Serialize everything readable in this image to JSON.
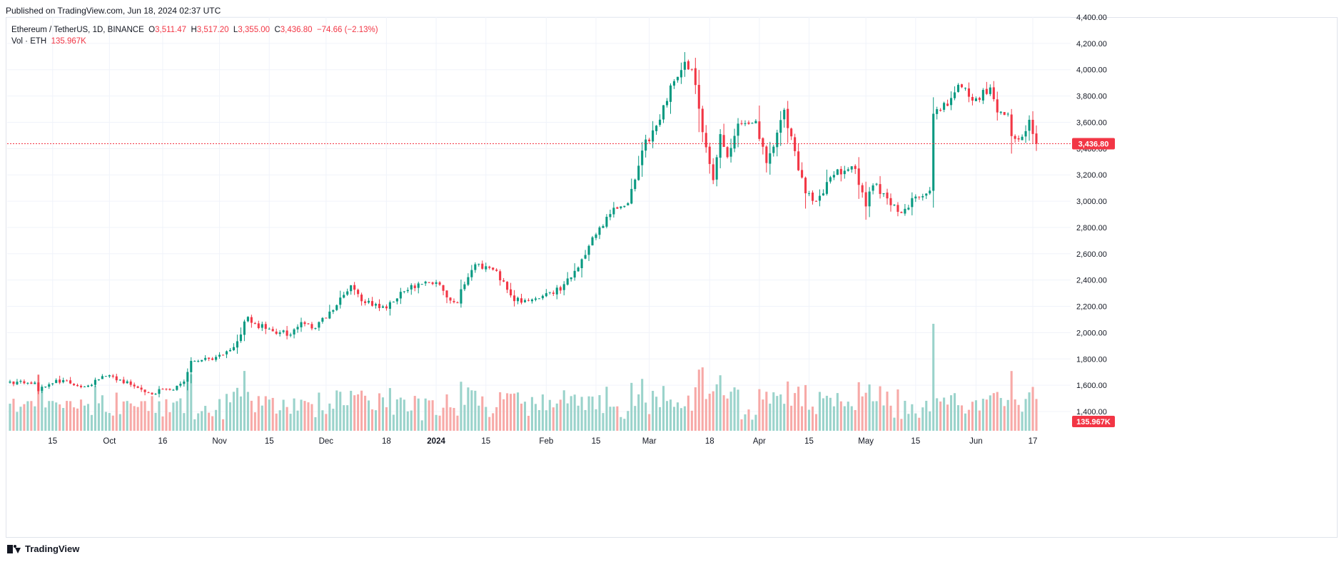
{
  "header": {
    "published": "Published on TradingView.com, Jun 18, 2024 02:37 UTC"
  },
  "legend": {
    "symbol": "Ethereum / TetherUS, 1D, BINANCE",
    "open_label": "O",
    "open": "3,511.47",
    "high_label": "H",
    "high": "3,517.20",
    "low_label": "L",
    "low": "3,355.00",
    "close_label": "C",
    "close": "3,436.80",
    "change": "−74.66 (−2.13%)",
    "volume_label": "Vol · ETH",
    "volume": "135.967K"
  },
  "badges": {
    "price": "3,436.80",
    "volume": "135.967K"
  },
  "footer": {
    "brand": "TradingView"
  },
  "colors": {
    "up": "#089981",
    "down": "#f23645",
    "up_vol": "#9ad3cb",
    "down_vol": "#f7a9a7",
    "grid": "#f0f3fa"
  },
  "chart_data": {
    "type": "candlestick",
    "ylim": [
      1400,
      4400
    ],
    "y_ticks": [
      "1,400.00",
      "1,600.00",
      "1,800.00",
      "2,000.00",
      "2,200.00",
      "2,400.00",
      "2,600.00",
      "2,800.00",
      "3,000.00",
      "3,200.00",
      "3,400.00",
      "3,600.00",
      "3,800.00",
      "4,000.00",
      "4,200.00",
      "4,400.00"
    ],
    "x_ticks": [
      "15",
      "Oct",
      "16",
      "Nov",
      "15",
      "Dec",
      "18",
      "2024",
      "15",
      "Feb",
      "15",
      "Mar",
      "18",
      "Apr",
      "15",
      "May",
      "15",
      "Jun",
      "17"
    ],
    "last_price": 3436.8,
    "last_volume": "135.967K",
    "x_start": "2023-09-03",
    "anchors": [
      [
        "2023-09-03",
        1628
      ],
      [
        "2023-09-10",
        1620
      ],
      [
        "2023-09-11",
        1555
      ],
      [
        "2023-09-16",
        1640
      ],
      [
        "2023-09-24",
        1590
      ],
      [
        "2023-09-30",
        1670
      ],
      [
        "2023-10-02",
        1665
      ],
      [
        "2023-10-09",
        1580
      ],
      [
        "2023-10-12",
        1545
      ],
      [
        "2023-10-19",
        1565
      ],
      [
        "2023-10-22",
        1628
      ],
      [
        "2023-10-24",
        1785
      ],
      [
        "2023-10-31",
        1815
      ],
      [
        "2023-11-05",
        1890
      ],
      [
        "2023-11-09",
        2120
      ],
      [
        "2023-11-10",
        2075
      ],
      [
        "2023-11-16",
        2010
      ],
      [
        "2023-11-21",
        1985
      ],
      [
        "2023-11-24",
        2080
      ],
      [
        "2023-11-28",
        2035
      ],
      [
        "2023-12-02",
        2160
      ],
      [
        "2023-12-08",
        2360
      ],
      [
        "2023-12-12",
        2225
      ],
      [
        "2023-12-18",
        2185
      ],
      [
        "2023-12-23",
        2315
      ],
      [
        "2023-12-28",
        2370
      ],
      [
        "2024-01-02",
        2365
      ],
      [
        "2024-01-04",
        2268
      ],
      [
        "2024-01-07",
        2225
      ],
      [
        "2024-01-08",
        2330
      ],
      [
        "2024-01-12",
        2520
      ],
      [
        "2024-01-15",
        2505
      ],
      [
        "2024-01-18",
        2470
      ],
      [
        "2024-01-23",
        2240
      ],
      [
        "2024-01-29",
        2260
      ],
      [
        "2024-02-01",
        2300
      ],
      [
        "2024-02-03",
        2295
      ],
      [
        "2024-02-08",
        2420
      ],
      [
        "2024-02-13",
        2660
      ],
      [
        "2024-02-16",
        2800
      ],
      [
        "2024-02-20",
        2950
      ],
      [
        "2024-02-24",
        2985
      ],
      [
        "2024-02-28",
        3385
      ],
      [
        "2024-03-04",
        3620
      ],
      [
        "2024-03-07",
        3880
      ],
      [
        "2024-03-11",
        4060
      ],
      [
        "2024-03-13",
        4005
      ],
      [
        "2024-03-16",
        3525
      ],
      [
        "2024-03-19",
        3160
      ],
      [
        "2024-03-21",
        3510
      ],
      [
        "2024-03-23",
        3335
      ],
      [
        "2024-03-26",
        3590
      ],
      [
        "2024-03-31",
        3610
      ],
      [
        "2024-04-03",
        3290
      ],
      [
        "2024-04-08",
        3695
      ],
      [
        "2024-04-12",
        3235
      ],
      [
        "2024-04-14",
        3060
      ],
      [
        "2024-04-17",
        3000
      ],
      [
        "2024-04-22",
        3200
      ],
      [
        "2024-04-28",
        3245
      ],
      [
        "2024-05-01",
        2960
      ],
      [
        "2024-05-03",
        3120
      ],
      [
        "2024-05-06",
        3060
      ],
      [
        "2024-05-11",
        2910
      ],
      [
        "2024-05-15",
        3035
      ],
      [
        "2024-05-19",
        3080
      ],
      [
        "2024-05-20",
        3665
      ],
      [
        "2024-05-24",
        3725
      ],
      [
        "2024-05-27",
        3885
      ],
      [
        "2024-05-31",
        3765
      ],
      [
        "2024-06-05",
        3865
      ],
      [
        "2024-06-07",
        3675
      ],
      [
        "2024-06-10",
        3665
      ],
      [
        "2024-06-11",
        3495
      ],
      [
        "2024-06-13",
        3470
      ],
      [
        "2024-06-14",
        3490
      ],
      [
        "2024-06-16",
        3619
      ],
      [
        "2024-06-17",
        3511
      ],
      [
        "2024-06-18",
        3437
      ]
    ]
  }
}
